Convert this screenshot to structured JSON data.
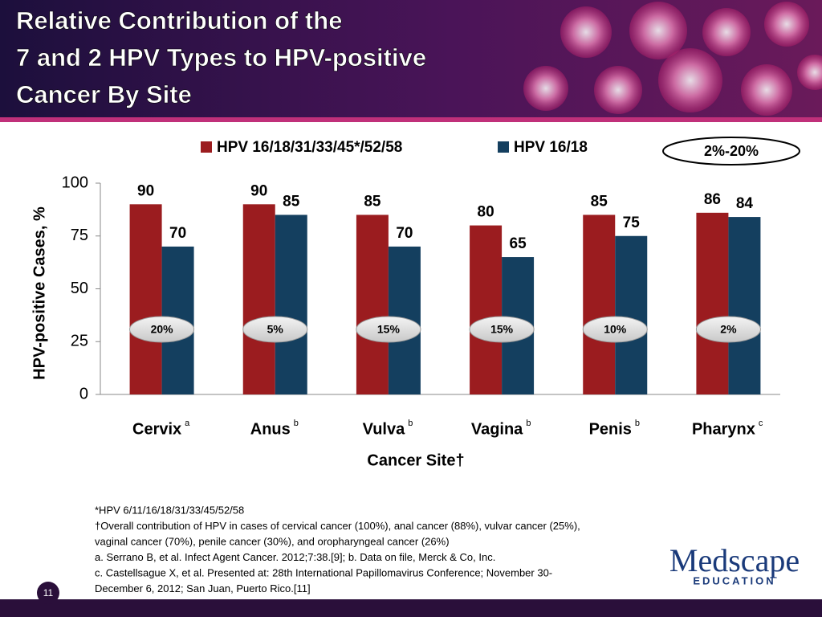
{
  "header": {
    "title_lines": [
      "Relative Contribution of the",
      "7 and 2 HPV Types to HPV-positive",
      "Cancer By Site"
    ]
  },
  "chart_data": {
    "type": "bar",
    "categories": [
      "Cervix",
      "Anus",
      "Vulva",
      "Vagina",
      "Penis",
      "Pharynx"
    ],
    "category_notes": [
      "a",
      "b",
      "b",
      "b",
      "b",
      "c"
    ],
    "series": [
      {
        "name": "HPV 16/18/31/33/45*/52/58",
        "color": "#9b1c1f",
        "values": [
          90,
          90,
          85,
          80,
          85,
          86
        ]
      },
      {
        "name": "HPV 16/18",
        "color": "#143f5f",
        "values": [
          70,
          85,
          70,
          65,
          75,
          84
        ]
      }
    ],
    "difference_labels": [
      "20%",
      "5%",
      "15%",
      "15%",
      "10%",
      "2%"
    ],
    "range_label": "2%-20%",
    "y_label": "HPV-positive Cases, %",
    "x_label": "Cancer Site†",
    "ylim": [
      0,
      100
    ],
    "yticks": [
      0,
      25,
      50,
      75,
      100
    ]
  },
  "footnotes": [
    "*HPV 6/11/16/18/31/33/45/52/58",
    "†Overall contribution of HPV in cases of cervical cancer  (100%), anal cancer (88%), vulvar cancer (25%),",
    "vaginal cancer (70%), penile cancer (30%), and oropharyngeal cancer (26%)",
    "a. Serrano B, et al. Infect Agent Cancer. 2012;7:38.[9]; b. Data on file, Merck & Co, Inc.",
    "c. Castellsague X, et al. Presented at: 28th International Papillomavirus Conference; November 30-",
    "December 6, 2012; San Juan, Puerto Rico.[11]"
  ],
  "logo": {
    "name": "Medscape",
    "tagline": "EDUCATION"
  },
  "page_number": "11"
}
